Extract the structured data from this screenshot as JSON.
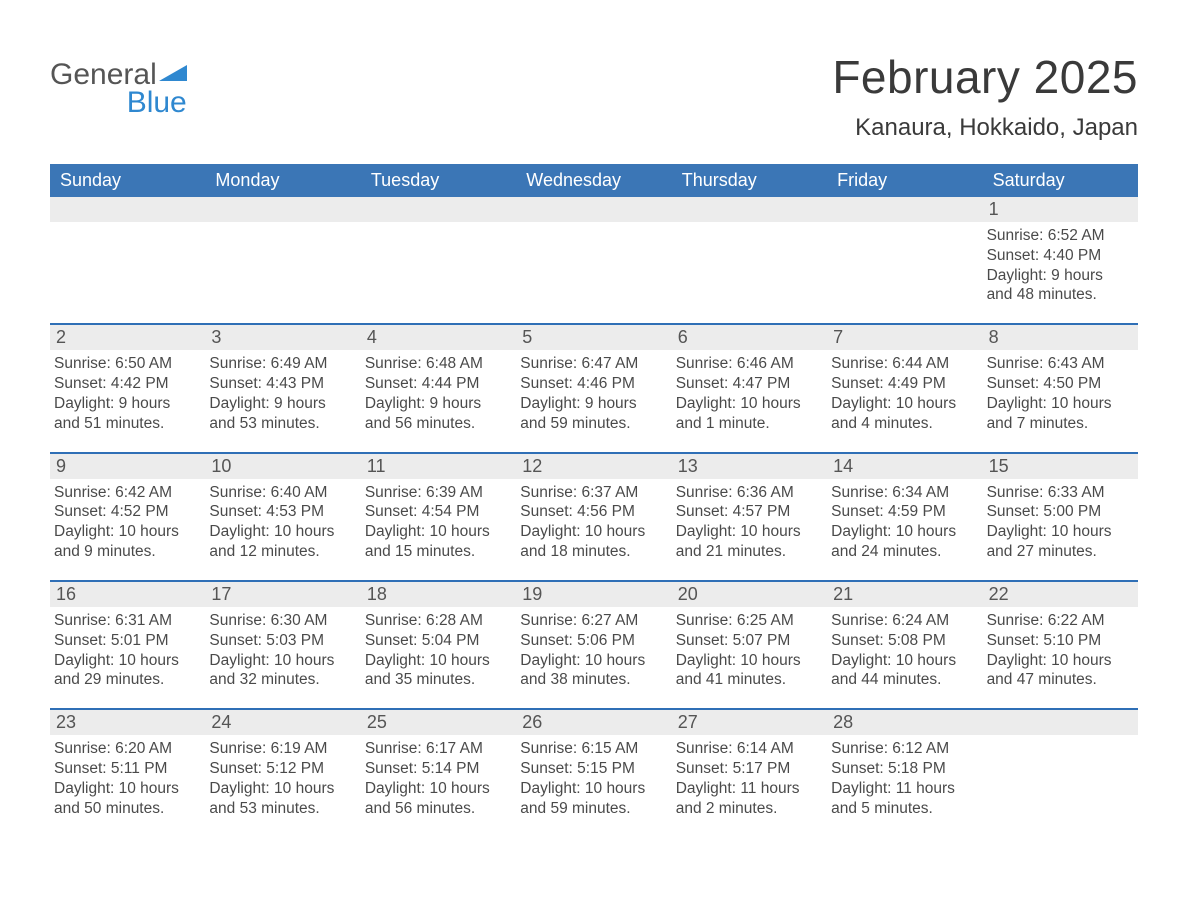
{
  "logo": {
    "line1": "General",
    "line2": "Blue"
  },
  "title": "February 2025",
  "location": "Kanaura, Hokkaido, Japan",
  "colors": {
    "header_blue": "#3b76b6",
    "accent_blue": "#2f6fb6",
    "light_gray": "#ececec",
    "logo_blue": "#2f88d0",
    "text": "#3a3a3a"
  },
  "daynames": [
    "Sunday",
    "Monday",
    "Tuesday",
    "Wednesday",
    "Thursday",
    "Friday",
    "Saturday"
  ],
  "weeks": [
    [
      null,
      null,
      null,
      null,
      null,
      null,
      {
        "n": "1",
        "sunrise": "6:52 AM",
        "sunset": "4:40 PM",
        "daylight": "9 hours and 48 minutes."
      }
    ],
    [
      {
        "n": "2",
        "sunrise": "6:50 AM",
        "sunset": "4:42 PM",
        "daylight": "9 hours and 51 minutes."
      },
      {
        "n": "3",
        "sunrise": "6:49 AM",
        "sunset": "4:43 PM",
        "daylight": "9 hours and 53 minutes."
      },
      {
        "n": "4",
        "sunrise": "6:48 AM",
        "sunset": "4:44 PM",
        "daylight": "9 hours and 56 minutes."
      },
      {
        "n": "5",
        "sunrise": "6:47 AM",
        "sunset": "4:46 PM",
        "daylight": "9 hours and 59 minutes."
      },
      {
        "n": "6",
        "sunrise": "6:46 AM",
        "sunset": "4:47 PM",
        "daylight": "10 hours and 1 minute."
      },
      {
        "n": "7",
        "sunrise": "6:44 AM",
        "sunset": "4:49 PM",
        "daylight": "10 hours and 4 minutes."
      },
      {
        "n": "8",
        "sunrise": "6:43 AM",
        "sunset": "4:50 PM",
        "daylight": "10 hours and 7 minutes."
      }
    ],
    [
      {
        "n": "9",
        "sunrise": "6:42 AM",
        "sunset": "4:52 PM",
        "daylight": "10 hours and 9 minutes."
      },
      {
        "n": "10",
        "sunrise": "6:40 AM",
        "sunset": "4:53 PM",
        "daylight": "10 hours and 12 minutes."
      },
      {
        "n": "11",
        "sunrise": "6:39 AM",
        "sunset": "4:54 PM",
        "daylight": "10 hours and 15 minutes."
      },
      {
        "n": "12",
        "sunrise": "6:37 AM",
        "sunset": "4:56 PM",
        "daylight": "10 hours and 18 minutes."
      },
      {
        "n": "13",
        "sunrise": "6:36 AM",
        "sunset": "4:57 PM",
        "daylight": "10 hours and 21 minutes."
      },
      {
        "n": "14",
        "sunrise": "6:34 AM",
        "sunset": "4:59 PM",
        "daylight": "10 hours and 24 minutes."
      },
      {
        "n": "15",
        "sunrise": "6:33 AM",
        "sunset": "5:00 PM",
        "daylight": "10 hours and 27 minutes."
      }
    ],
    [
      {
        "n": "16",
        "sunrise": "6:31 AM",
        "sunset": "5:01 PM",
        "daylight": "10 hours and 29 minutes."
      },
      {
        "n": "17",
        "sunrise": "6:30 AM",
        "sunset": "5:03 PM",
        "daylight": "10 hours and 32 minutes."
      },
      {
        "n": "18",
        "sunrise": "6:28 AM",
        "sunset": "5:04 PM",
        "daylight": "10 hours and 35 minutes."
      },
      {
        "n": "19",
        "sunrise": "6:27 AM",
        "sunset": "5:06 PM",
        "daylight": "10 hours and 38 minutes."
      },
      {
        "n": "20",
        "sunrise": "6:25 AM",
        "sunset": "5:07 PM",
        "daylight": "10 hours and 41 minutes."
      },
      {
        "n": "21",
        "sunrise": "6:24 AM",
        "sunset": "5:08 PM",
        "daylight": "10 hours and 44 minutes."
      },
      {
        "n": "22",
        "sunrise": "6:22 AM",
        "sunset": "5:10 PM",
        "daylight": "10 hours and 47 minutes."
      }
    ],
    [
      {
        "n": "23",
        "sunrise": "6:20 AM",
        "sunset": "5:11 PM",
        "daylight": "10 hours and 50 minutes."
      },
      {
        "n": "24",
        "sunrise": "6:19 AM",
        "sunset": "5:12 PM",
        "daylight": "10 hours and 53 minutes."
      },
      {
        "n": "25",
        "sunrise": "6:17 AM",
        "sunset": "5:14 PM",
        "daylight": "10 hours and 56 minutes."
      },
      {
        "n": "26",
        "sunrise": "6:15 AM",
        "sunset": "5:15 PM",
        "daylight": "10 hours and 59 minutes."
      },
      {
        "n": "27",
        "sunrise": "6:14 AM",
        "sunset": "5:17 PM",
        "daylight": "11 hours and 2 minutes."
      },
      {
        "n": "28",
        "sunrise": "6:12 AM",
        "sunset": "5:18 PM",
        "daylight": "11 hours and 5 minutes."
      },
      null
    ]
  ],
  "labels": {
    "sunrise": "Sunrise: ",
    "sunset": "Sunset: ",
    "daylight": "Daylight: "
  }
}
